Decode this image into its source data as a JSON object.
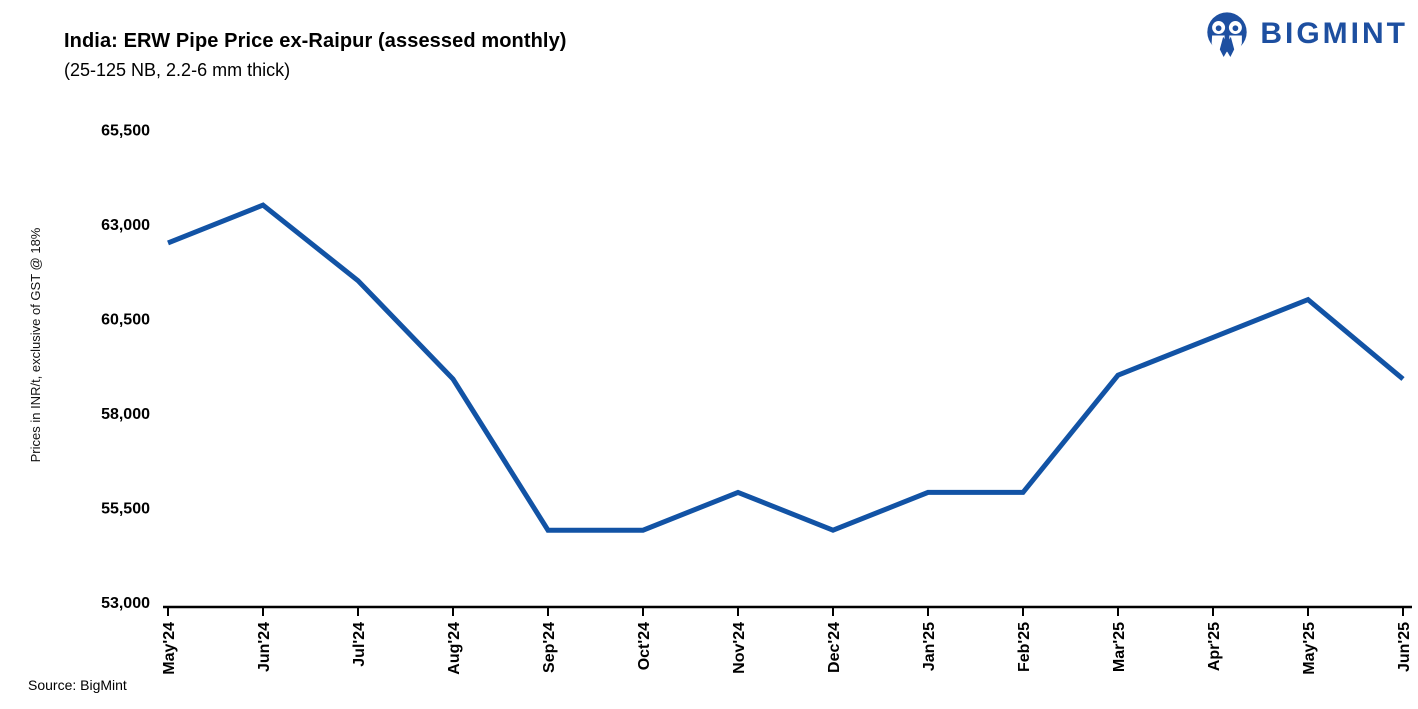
{
  "logo": {
    "brand": "BIGMINT",
    "color": "#1d4fa0"
  },
  "chart_data": {
    "type": "line",
    "title": "India: ERW Pipe Price ex-Raipur (assessed monthly)",
    "subtitle": "(25-125 NB, 2.2-6 mm thick)",
    "ylabel": "Prices in INR/t, exclusive of GST @ 18%",
    "x": [
      "May'24",
      "Jun'24",
      "Jul'24",
      "Aug'24",
      "Sep'24",
      "Oct'24",
      "Nov'24",
      "Dec'24",
      "Jan'25",
      "Feb'25",
      "Mar'25",
      "Apr'25",
      "May'25",
      "Jun'25"
    ],
    "series": [
      {
        "name": "ERW pipe price ex-Raipur",
        "values": [
          62500,
          63500,
          61500,
          58900,
          54900,
          54900,
          55900,
          54900,
          55900,
          55900,
          59000,
          60000,
          61000,
          58900
        ]
      }
    ],
    "ylim": [
      53000,
      65500
    ],
    "y_ticks": [
      53000,
      55500,
      58000,
      60500,
      63000,
      65500
    ],
    "grid": false,
    "legend": false,
    "line_color": "#1253a5",
    "source_note": "Source: BigMint"
  }
}
